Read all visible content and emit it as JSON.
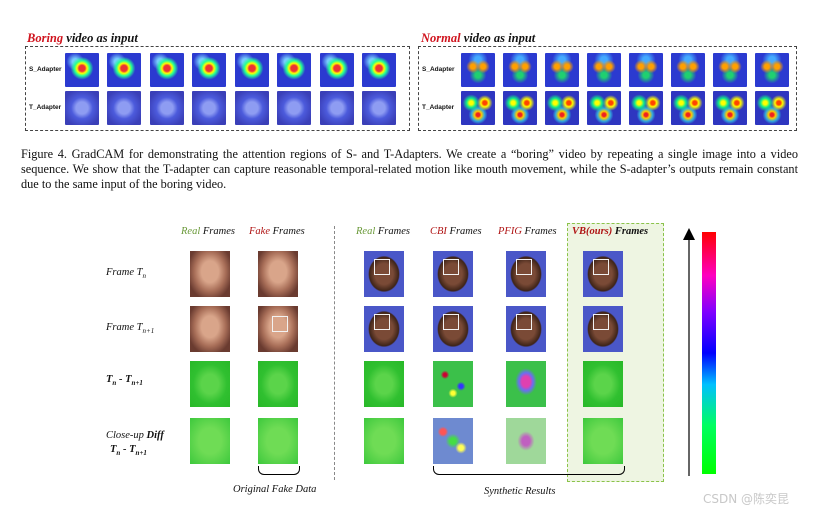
{
  "top_figure": {
    "boring_panel": {
      "title_highlight": "Boring",
      "title_rest": " video as input",
      "rows": [
        "S_Adapter",
        "T_Adapter"
      ]
    },
    "normal_panel": {
      "title_highlight": "Normal",
      "title_rest": " video as input",
      "rows": [
        "S_Adapter",
        "T_Adapter"
      ]
    },
    "caption": "Figure 4.  GradCAM for demonstrating the attention regions of S- and T-Adapters.  We create a “boring” video by repeating a single image into a video sequence. We show that the T-adapter can capture reasonable temporal-related motion like mouth movement, while the S-adapter’s outputs remain constant due to the same input of the boring video."
  },
  "bottom_figure": {
    "column_headers": {
      "real_left": {
        "hl": "Real",
        "rest": " Frames"
      },
      "fake": {
        "hl": "Fake",
        "rest": " Frames"
      },
      "real_right": {
        "hl": "Real",
        "rest": " Frames"
      },
      "cbi": {
        "hl": "CBI",
        "rest": " Frames"
      },
      "pfig": {
        "hl": "PFIG",
        "rest": " Frames"
      },
      "vb": {
        "hl": "VB(ours)",
        "rest": " Frames"
      }
    },
    "row_labels": {
      "frame_tn": {
        "main": "Frame T",
        "sub": "n"
      },
      "frame_tn1": {
        "main": "Frame T",
        "sub": "n+1"
      },
      "diff": {
        "a": "T",
        "a_sub": "n",
        "mid": " - T",
        "b_sub": "n+1"
      },
      "closeup_1": "Close-up ",
      "closeup_bold": "Diff",
      "closeup_2": "T",
      "closeup_2_sub": "n",
      "closeup_2_mid": " - T",
      "closeup_2_sub2": "n+1"
    },
    "bottom_labels": {
      "original": "Original Fake Data",
      "synthetic": "Synthetic Results"
    }
  },
  "watermark": "CSDN @陈奕昆",
  "colors": {
    "highlight_red": "#d0141e",
    "real_green": "#6b9a3a",
    "vb_box_border": "#8bc34a"
  }
}
